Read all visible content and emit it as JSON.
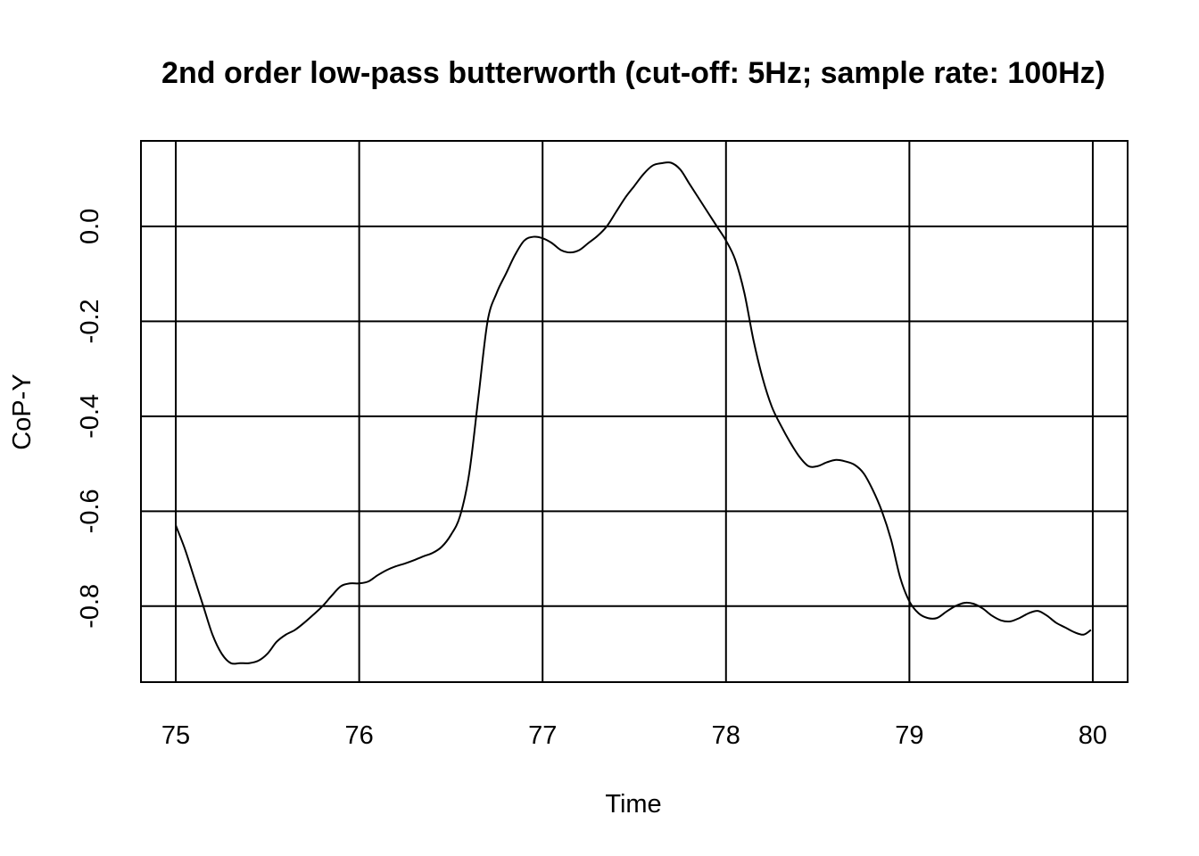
{
  "chart_data": {
    "type": "line",
    "title": "2nd order low-pass butterworth (cut-off: 5Hz; sample rate: 100Hz)",
    "xlabel": "Time",
    "ylabel": "CoP-Y",
    "xlim": [
      74.81,
      80.19
    ],
    "ylim": [
      -0.96,
      0.18
    ],
    "x_ticks": [
      75,
      76,
      77,
      78,
      79,
      80
    ],
    "x_tick_labels": [
      "75",
      "76",
      "77",
      "78",
      "79",
      "80"
    ],
    "y_ticks": [
      -0.8,
      -0.6,
      -0.4,
      -0.2,
      0.0
    ],
    "y_tick_labels": [
      "-0.8",
      "-0.6",
      "-0.4",
      "-0.2",
      "0.0"
    ],
    "grid": true,
    "colors": {
      "line": "#000000",
      "grid": "#000000",
      "background": "#ffffff"
    },
    "series": [
      {
        "x": [
          75.0,
          75.05,
          75.1,
          75.15,
          75.2,
          75.25,
          75.3,
          75.35,
          75.4,
          75.45,
          75.5,
          75.55,
          75.6,
          75.65,
          75.7,
          75.75,
          75.8,
          75.85,
          75.9,
          75.95,
          76.0,
          76.05,
          76.1,
          76.15,
          76.2,
          76.25,
          76.3,
          76.35,
          76.4,
          76.45,
          76.5,
          76.55,
          76.6,
          76.65,
          76.7,
          76.75,
          76.8,
          76.85,
          76.9,
          76.95,
          77.0,
          77.05,
          77.1,
          77.15,
          77.2,
          77.25,
          77.3,
          77.35,
          77.4,
          77.45,
          77.5,
          77.55,
          77.6,
          77.65,
          77.7,
          77.75,
          77.8,
          77.85,
          77.9,
          77.95,
          78.0,
          78.05,
          78.1,
          78.15,
          78.2,
          78.25,
          78.3,
          78.35,
          78.4,
          78.45,
          78.5,
          78.55,
          78.6,
          78.65,
          78.7,
          78.75,
          78.8,
          78.85,
          78.9,
          78.95,
          79.0,
          79.05,
          79.1,
          79.15,
          79.2,
          79.25,
          79.3,
          79.35,
          79.4,
          79.45,
          79.5,
          79.55,
          79.6,
          79.65,
          79.7,
          79.75,
          79.8,
          79.85,
          79.9,
          79.95,
          79.99
        ],
        "y": [
          -0.63,
          -0.68,
          -0.74,
          -0.8,
          -0.86,
          -0.9,
          -0.92,
          -0.92,
          -0.92,
          -0.915,
          -0.9,
          -0.875,
          -0.86,
          -0.85,
          -0.835,
          -0.818,
          -0.8,
          -0.778,
          -0.758,
          -0.752,
          -0.752,
          -0.748,
          -0.735,
          -0.724,
          -0.716,
          -0.71,
          -0.703,
          -0.695,
          -0.688,
          -0.675,
          -0.65,
          -0.61,
          -0.52,
          -0.36,
          -0.2,
          -0.14,
          -0.1,
          -0.06,
          -0.03,
          -0.022,
          -0.025,
          -0.035,
          -0.05,
          -0.055,
          -0.05,
          -0.035,
          -0.02,
          0.0,
          0.03,
          0.06,
          0.085,
          0.11,
          0.128,
          0.133,
          0.134,
          0.12,
          0.09,
          0.06,
          0.03,
          0.0,
          -0.03,
          -0.07,
          -0.14,
          -0.24,
          -0.32,
          -0.38,
          -0.42,
          -0.455,
          -0.485,
          -0.505,
          -0.505,
          -0.497,
          -0.492,
          -0.495,
          -0.502,
          -0.52,
          -0.555,
          -0.6,
          -0.66,
          -0.74,
          -0.79,
          -0.815,
          -0.825,
          -0.825,
          -0.812,
          -0.8,
          -0.793,
          -0.795,
          -0.805,
          -0.82,
          -0.83,
          -0.832,
          -0.825,
          -0.815,
          -0.81,
          -0.82,
          -0.835,
          -0.845,
          -0.855,
          -0.86,
          -0.85
        ]
      }
    ]
  }
}
